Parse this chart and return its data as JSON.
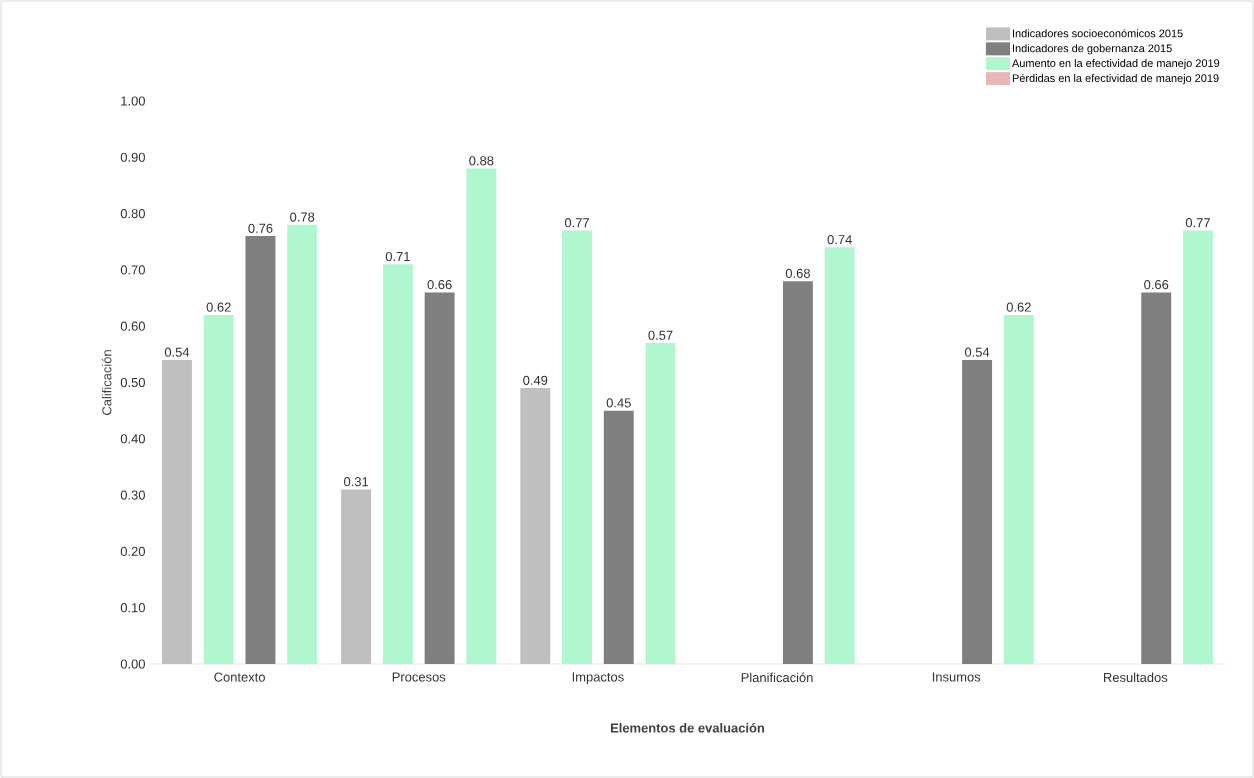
{
  "chart_data": {
    "type": "bar",
    "xlabel": "Elementos de evaluación",
    "ylabel": "Calificación",
    "categories": [
      "Contexto",
      "Procesos",
      "Impactos",
      "Planificación",
      "Insumos",
      "Resultados"
    ],
    "series": [
      {
        "name": "Indicadores socioeconómicos 2015",
        "color": "#bfbfbf",
        "values": [
          0.54,
          0.31,
          0.49,
          null,
          null,
          null
        ]
      },
      {
        "color": "#b0f7d0",
        "values": [
          0.62,
          0.71,
          0.77,
          null,
          null,
          null
        ]
      },
      {
        "name": "Indicadores de gobernanza 2015",
        "color": "#7f7f7f",
        "values": [
          0.76,
          0.66,
          0.45,
          0.68,
          0.54,
          0.66
        ]
      },
      {
        "name": "Aumento en la efectividad de manejo 2019",
        "color": "#b0f7d0",
        "values": [
          0.78,
          0.88,
          0.57,
          0.74,
          0.62,
          0.77
        ]
      },
      {
        "name": "Pérdidas en la efectividad de manejo 2019",
        "color": "#e6b8b7",
        "values": [
          null,
          null,
          null,
          null,
          null,
          null
        ]
      }
    ],
    "ylim": [
      0,
      1
    ],
    "yticks": [
      {
        "value": 0,
        "label": "0.00"
      },
      {
        "value": 0.1,
        "label": "0.10"
      },
      {
        "value": 0.2,
        "label": "0.20"
      },
      {
        "value": 0.3,
        "label": "0.30"
      },
      {
        "value": 0.4,
        "label": "0.40"
      },
      {
        "value": 0.5,
        "label": "0.50"
      },
      {
        "value": 0.6,
        "label": "0.60"
      },
      {
        "value": 0.7,
        "label": "0.70"
      },
      {
        "value": 0.8,
        "label": "0.80"
      },
      {
        "value": 0.9,
        "label": "0.90"
      },
      {
        "value": 1,
        "label": "1.00"
      }
    ],
    "data_labels": true,
    "legend": "top right",
    "grid": false
  }
}
